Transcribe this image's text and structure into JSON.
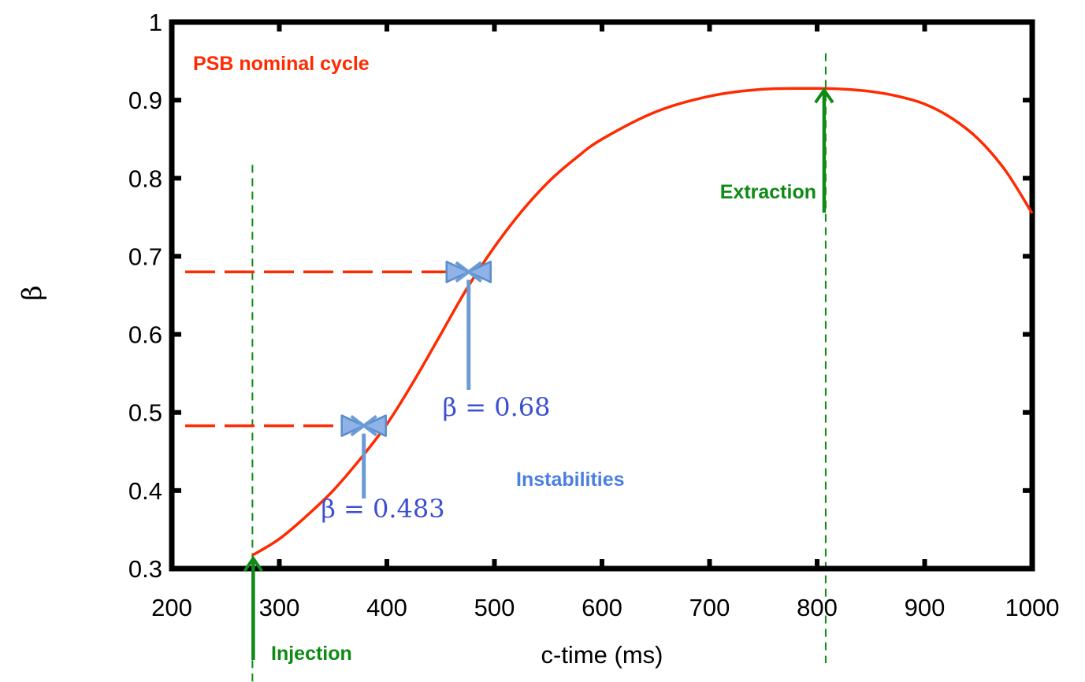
{
  "chart_data": {
    "type": "line",
    "title": "",
    "xlabel": "c-time (ms)",
    "ylabel": "β",
    "xlim": [
      200,
      1000
    ],
    "ylim": [
      0.3,
      1.0
    ],
    "xticks": [
      "200",
      "300",
      "400",
      "500",
      "600",
      "700",
      "800",
      "900",
      "1000"
    ],
    "yticks": [
      "0.3",
      "0.4",
      "0.5",
      "0.6",
      "0.7",
      "0.8",
      "0.9",
      "1"
    ],
    "grid": false,
    "series": [
      {
        "name": "PSB nominal cycle",
        "color": "#ff2a00",
        "x": [
          275,
          300,
          325,
          350,
          375,
          400,
          425,
          450,
          475,
          500,
          525,
          550,
          575,
          600,
          650,
          700,
          750,
          800,
          825,
          850,
          875,
          900,
          925,
          950,
          975,
          1000
        ],
        "y": [
          0.317,
          0.338,
          0.367,
          0.4,
          0.44,
          0.485,
          0.54,
          0.6,
          0.66,
          0.712,
          0.757,
          0.795,
          0.825,
          0.85,
          0.885,
          0.905,
          0.914,
          0.915,
          0.914,
          0.911,
          0.905,
          0.895,
          0.877,
          0.85,
          0.81,
          0.755
        ]
      }
    ],
    "annotations": {
      "series_label": "PSB nominal cycle",
      "injection": {
        "label": "Injection",
        "x": 275,
        "color": "#0f8a14"
      },
      "extraction": {
        "label": "Extraction",
        "x": 808,
        "color": "#0f8a14"
      },
      "instabilities": {
        "label": "Instabilities",
        "color": "#4a7fe0",
        "points": [
          {
            "x": 380,
            "y": 0.483,
            "label": "β = 0.483"
          },
          {
            "x": 476,
            "y": 0.68,
            "label": "β = 0.68"
          }
        ]
      }
    }
  }
}
